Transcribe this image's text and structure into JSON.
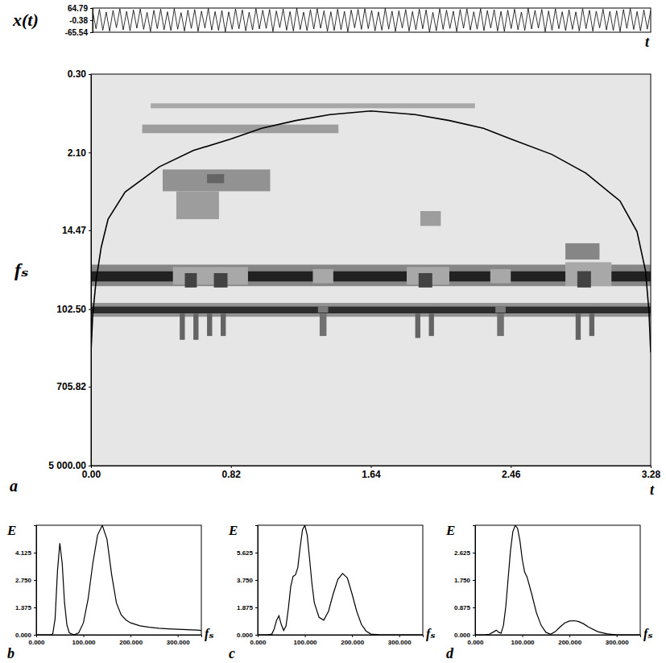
{
  "chart_data": [
    {
      "type": "line",
      "y_label": "x(t)",
      "x_label": "t",
      "color": "#000000",
      "tick_labels": "y",
      "xlim": [
        0,
        3.28
      ],
      "ylim": [
        -65.54,
        64.79
      ],
      "yticks": [
        64.79,
        -0.38,
        -65.54
      ],
      "x": [
        0,
        0.02,
        0.04,
        0.06,
        0.08,
        0.1,
        0.12,
        0.14,
        0.16,
        0.18,
        0.2,
        0.22,
        0.24,
        0.26,
        0.28,
        0.3,
        0.32,
        0.34,
        0.36,
        0.38,
        0.4,
        0.42,
        0.44,
        0.46,
        0.48,
        0.5,
        0.52,
        0.54,
        0.56,
        0.58,
        0.6,
        0.62,
        0.64,
        0.66,
        0.68,
        0.7,
        0.72,
        0.74,
        0.76,
        0.78,
        0.8,
        0.82,
        0.84,
        0.86,
        0.88,
        0.9,
        0.92,
        0.94,
        0.96,
        0.98,
        1,
        1.02,
        1.04,
        1.06,
        1.08,
        1.1,
        1.12,
        1.14,
        1.16,
        1.18,
        1.2,
        1.22,
        1.24,
        1.26,
        1.28,
        1.3,
        1.32,
        1.34,
        1.36,
        1.38,
        1.4,
        1.42,
        1.44,
        1.46,
        1.48,
        1.5,
        1.52,
        1.54,
        1.56,
        1.58,
        1.6,
        1.62,
        1.64,
        1.66,
        1.68,
        1.7,
        1.72,
        1.74,
        1.76,
        1.78,
        1.8,
        1.82,
        1.84,
        1.86,
        1.88,
        1.9,
        1.92,
        1.94,
        1.96,
        1.98,
        2,
        2.02,
        2.04,
        2.06,
        2.08,
        2.1,
        2.12,
        2.14,
        2.16,
        2.18,
        2.2,
        2.22,
        2.24,
        2.26,
        2.28,
        2.3,
        2.32,
        2.34,
        2.36,
        2.38,
        2.4,
        2.42,
        2.44,
        2.46,
        2.48,
        2.5,
        2.52,
        2.54,
        2.56,
        2.58,
        2.6,
        2.62,
        2.64,
        2.66,
        2.68,
        2.7,
        2.72,
        2.74,
        2.76,
        2.78,
        2.8,
        2.82,
        2.84,
        2.86,
        2.88,
        2.9,
        2.92,
        2.94,
        2.96,
        2.98,
        3,
        3.02,
        3.04,
        3.06,
        3.08,
        3.1,
        3.12,
        3.14,
        3.16,
        3.18,
        3.2,
        3.22,
        3.24,
        3.26,
        3.28
      ],
      "values": [
        50,
        -47,
        58,
        -55,
        43,
        -60,
        52,
        -41,
        61,
        -53,
        47,
        -58,
        55,
        -44,
        60,
        -50,
        42,
        -62,
        53,
        -46,
        59,
        -52,
        45,
        -57,
        62,
        -49,
        40,
        -59,
        54,
        -45,
        57,
        -61,
        48,
        -43,
        63,
        -54,
        46,
        -56,
        51,
        -64,
        44,
        -50,
        60,
        -47,
        55,
        -58,
        42,
        -53,
        62,
        -48,
        53,
        -45,
        57,
        -62,
        49,
        -41,
        60,
        -55,
        46,
        -59,
        64,
        -51,
        43,
        -57,
        56,
        -48,
        61,
        -44,
        50,
        -60,
        45,
        -56,
        59,
        -52,
        47,
        -63,
        54,
        -42,
        58,
        -50,
        61,
        -46,
        52,
        -58,
        44,
        -55,
        63,
        -49,
        48,
        -61,
        50,
        -43,
        57,
        -60,
        46,
        -52,
        59,
        -47,
        55,
        -65,
        42,
        -58,
        61,
        -50,
        53,
        -45,
        48,
        -62,
        57,
        -44,
        60,
        -54,
        45,
        -49,
        62,
        -57,
        51,
        -43,
        56,
        -59,
        47,
        -61,
        54,
        -46,
        59,
        -52,
        43,
        -56,
        64,
        -48,
        52,
        -44,
        58,
        -63,
        49,
        -55,
        61,
        -47,
        45,
        -57,
        56,
        -50,
        44,
        -59,
        62,
        -46,
        53,
        -60,
        48,
        -42,
        59,
        -53,
        47,
        -56,
        50,
        -62,
        57,
        -45,
        63,
        -51,
        46,
        -58,
        55,
        -49,
        52
      ]
    },
    {
      "type": "heatmap",
      "panel": "a",
      "x_label": "t",
      "y_label": "fₛ",
      "log": "y",
      "xlim": [
        0,
        3.28
      ],
      "ylim": [
        0.3,
        5000
      ],
      "xticks": [
        {
          "value": 0,
          "label": "0.00"
        },
        0.82,
        1.64,
        2.46,
        3.28
      ],
      "yticks": [
        {
          "value": 0.3,
          "label": "0.30"
        },
        {
          "value": 2.1,
          "label": "2.10"
        },
        14.47,
        {
          "value": 102.5,
          "label": "102.50"
        },
        705.82,
        {
          "value": 5000,
          "label": "5 000.00"
        }
      ],
      "value_range": [
        0,
        1
      ],
      "cells": [
        {
          "t": [
            0,
            3.28
          ],
          "f": [
            34,
            40
          ],
          "v": 0.45
        },
        {
          "t": [
            0,
            3.28
          ],
          "f": [
            40,
            52
          ],
          "v": 0.9
        },
        {
          "t": [
            0,
            3.28
          ],
          "f": [
            52,
            58
          ],
          "v": 0.45
        },
        {
          "t": [
            0,
            3.28
          ],
          "f": [
            88,
            96
          ],
          "v": 0.4
        },
        {
          "t": [
            0,
            3.28
          ],
          "f": [
            96,
            115
          ],
          "v": 0.85
        },
        {
          "t": [
            0,
            3.28
          ],
          "f": [
            115,
            124
          ],
          "v": 0.4
        },
        {
          "t": [
            0.35,
            2.25
          ],
          "f": [
            0.62,
            0.7
          ],
          "v": 0.3
        },
        {
          "t": [
            0.3,
            1.45
          ],
          "f": [
            1.05,
            1.3
          ],
          "v": 0.35
        },
        {
          "t": [
            0.42,
            1.05
          ],
          "f": [
            3.2,
            5.5
          ],
          "v": 0.4
        },
        {
          "t": [
            0.5,
            0.75
          ],
          "f": [
            5.5,
            11
          ],
          "v": 0.35
        },
        {
          "t": [
            0.68,
            0.78
          ],
          "f": [
            3.6,
            4.5
          ],
          "v": 0.6
        },
        {
          "t": [
            1.93,
            2.05
          ],
          "f": [
            9,
            13
          ],
          "v": 0.35
        },
        {
          "t": [
            2.78,
            2.98
          ],
          "f": [
            20,
            30
          ],
          "v": 0.45
        },
        {
          "t": [
            0.48,
            0.92
          ],
          "f": [
            36,
            56
          ],
          "v": 0.3
        },
        {
          "t": [
            1.3,
            1.42
          ],
          "f": [
            38,
            54
          ],
          "v": 0.3
        },
        {
          "t": [
            1.85,
            2.1
          ],
          "f": [
            36,
            56
          ],
          "v": 0.3
        },
        {
          "t": [
            2.34,
            2.46
          ],
          "f": [
            38,
            54
          ],
          "v": 0.3
        },
        {
          "t": [
            2.78,
            3.05
          ],
          "f": [
            32,
            58
          ],
          "v": 0.3
        },
        {
          "t": [
            0.55,
            0.62
          ],
          "f": [
            42,
            60
          ],
          "v": 0.75
        },
        {
          "t": [
            0.72,
            0.8
          ],
          "f": [
            42,
            60
          ],
          "v": 0.75
        },
        {
          "t": [
            1.92,
            2.0
          ],
          "f": [
            42,
            60
          ],
          "v": 0.75
        },
        {
          "t": [
            2.85,
            2.93
          ],
          "f": [
            40,
            60
          ],
          "v": 0.75
        },
        {
          "t": [
            0.52,
            0.55
          ],
          "f": [
            115,
            220
          ],
          "v": 0.6
        },
        {
          "t": [
            0.6,
            0.63
          ],
          "f": [
            115,
            220
          ],
          "v": 0.6
        },
        {
          "t": [
            0.68,
            0.71
          ],
          "f": [
            115,
            200
          ],
          "v": 0.6
        },
        {
          "t": [
            0.76,
            0.79
          ],
          "f": [
            115,
            200
          ],
          "v": 0.6
        },
        {
          "t": [
            1.34,
            1.38
          ],
          "f": [
            115,
            200
          ],
          "v": 0.55
        },
        {
          "t": [
            1.9,
            1.93
          ],
          "f": [
            115,
            210
          ],
          "v": 0.6
        },
        {
          "t": [
            1.98,
            2.01
          ],
          "f": [
            115,
            200
          ],
          "v": 0.6
        },
        {
          "t": [
            2.38,
            2.42
          ],
          "f": [
            115,
            200
          ],
          "v": 0.55
        },
        {
          "t": [
            2.84,
            2.87
          ],
          "f": [
            115,
            220
          ],
          "v": 0.6
        },
        {
          "t": [
            2.92,
            2.95
          ],
          "f": [
            115,
            200
          ],
          "v": 0.6
        },
        {
          "t": [
            1.33,
            1.39
          ],
          "f": [
            96,
            112
          ],
          "v": 0.5
        },
        {
          "t": [
            2.37,
            2.43
          ],
          "f": [
            96,
            112
          ],
          "v": 0.5
        }
      ],
      "series": [
        {
          "type": "line",
          "color": "#000000",
          "x": [
            0,
            0.01,
            0.03,
            0.06,
            0.1,
            0.2,
            0.4,
            0.6,
            0.82,
            1.0,
            1.2,
            1.4,
            1.64,
            1.9,
            2.1,
            2.3,
            2.46,
            2.7,
            2.9,
            3.1,
            3.2,
            3.25,
            3.27,
            3.28
          ],
          "values": [
            300,
            120,
            50,
            22,
            11,
            5.6,
            3.0,
            2.0,
            1.5,
            1.15,
            0.95,
            0.82,
            0.75,
            0.82,
            0.95,
            1.15,
            1.5,
            2.2,
            3.5,
            7,
            15,
            40,
            110,
            300
          ]
        }
      ]
    },
    {
      "type": "line",
      "panel": "b",
      "x_label": "fₛ",
      "y_label": "E",
      "color": "#000000",
      "xlim": [
        0,
        350
      ],
      "ylim": [
        0,
        5.5
      ],
      "xticks": [
        {
          "value": 0,
          "label": "0.000"
        },
        {
          "value": 100,
          "label": "100.000"
        },
        {
          "value": 200,
          "label": "200.000"
        },
        {
          "value": 300,
          "label": "300.000"
        }
      ],
      "yticks": [
        {
          "value": 0,
          "label": "0.000"
        },
        1.375,
        {
          "value": 2.75,
          "label": "2.750"
        },
        4.125
      ],
      "x": [
        0,
        10,
        20,
        30,
        35,
        40,
        45,
        50,
        55,
        60,
        65,
        70,
        80,
        90,
        100,
        110,
        120,
        130,
        140,
        150,
        160,
        170,
        180,
        190,
        200,
        220,
        240,
        260,
        280,
        300,
        320,
        340,
        350
      ],
      "values": [
        0,
        0,
        0,
        0,
        0.05,
        0.8,
        3.2,
        4.6,
        3.6,
        1.6,
        0.5,
        0.1,
        0,
        0.1,
        0.6,
        1.8,
        3.6,
        5.0,
        5.5,
        4.8,
        3.0,
        1.6,
        1.0,
        0.75,
        0.6,
        0.45,
        0.38,
        0.33,
        0.3,
        0.28,
        0.26,
        0.24,
        0.22
      ]
    },
    {
      "type": "line",
      "panel": "c",
      "x_label": "fₛ",
      "y_label": "E",
      "color": "#000000",
      "xlim": [
        0,
        350
      ],
      "ylim": [
        0,
        7.5
      ],
      "xticks": [
        {
          "value": 0,
          "label": "0.000"
        },
        {
          "value": 100,
          "label": "100.000"
        },
        {
          "value": 200,
          "label": "200.000"
        },
        {
          "value": 300,
          "label": "300.000"
        }
      ],
      "yticks": [
        {
          "value": 0,
          "label": "0.000"
        },
        1.875,
        {
          "value": 3.75,
          "label": "3.750"
        },
        5.625
      ],
      "x": [
        0,
        10,
        20,
        30,
        35,
        40,
        45,
        50,
        55,
        60,
        65,
        70,
        75,
        80,
        85,
        90,
        95,
        100,
        105,
        110,
        115,
        120,
        130,
        140,
        150,
        160,
        170,
        180,
        190,
        200,
        210,
        220,
        230,
        240,
        260,
        300,
        350
      ],
      "values": [
        0,
        0,
        0,
        0.05,
        0.4,
        1.0,
        1.3,
        0.7,
        0.3,
        0.6,
        1.8,
        3.3,
        4.0,
        4.1,
        4.6,
        6.0,
        7.2,
        7.5,
        6.8,
        5.2,
        3.5,
        2.2,
        1.2,
        1.0,
        1.6,
        2.8,
        3.8,
        4.2,
        3.9,
        2.8,
        1.6,
        0.7,
        0.25,
        0.05,
        0,
        0,
        0
      ]
    },
    {
      "type": "line",
      "panel": "d",
      "x_label": "fₛ",
      "y_label": "E",
      "color": "#000000",
      "xlim": [
        0,
        350
      ],
      "ylim": [
        0,
        3.5
      ],
      "xticks": [
        {
          "value": 0,
          "label": "0.000"
        },
        {
          "value": 100,
          "label": "100.000"
        },
        {
          "value": 200,
          "label": "200.000"
        },
        {
          "value": 300,
          "label": "300.000"
        }
      ],
      "yticks": [
        {
          "value": 0,
          "label": "0.000"
        },
        0.875,
        {
          "value": 1.75,
          "label": "1.750"
        },
        2.625
      ],
      "x": [
        0,
        20,
        30,
        40,
        45,
        50,
        55,
        60,
        65,
        70,
        75,
        80,
        85,
        90,
        95,
        100,
        105,
        110,
        120,
        130,
        140,
        150,
        160,
        170,
        180,
        190,
        200,
        210,
        220,
        230,
        240,
        260,
        280,
        300,
        350
      ],
      "values": [
        0,
        0,
        0.02,
        0.1,
        0.15,
        0.08,
        0.05,
        0.3,
        0.9,
        1.8,
        2.7,
        3.3,
        3.5,
        3.4,
        3.0,
        2.4,
        2.0,
        1.85,
        1.3,
        0.7,
        0.3,
        0.08,
        0.02,
        0.1,
        0.25,
        0.38,
        0.44,
        0.45,
        0.42,
        0.35,
        0.25,
        0.1,
        0.03,
        0,
        0
      ]
    }
  ]
}
